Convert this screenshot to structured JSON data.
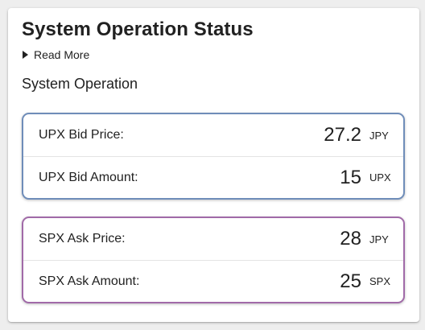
{
  "card": {
    "title": "System Operation Status",
    "read_more": "Read More",
    "subtitle": "System Operation"
  },
  "upx": {
    "bid_price_label": "UPX Bid Price:",
    "bid_price_value": "27.2",
    "bid_price_unit": "JPY",
    "bid_amount_label": "UPX Bid Amount:",
    "bid_amount_value": "15",
    "bid_amount_unit": "UPX",
    "border_color": "#6f8db9"
  },
  "spx": {
    "ask_price_label": "SPX Ask Price:",
    "ask_price_value": "28",
    "ask_price_unit": "JPY",
    "ask_amount_label": "SPX Ask Amount:",
    "ask_amount_value": "25",
    "ask_amount_unit": "SPX",
    "border_color": "#a16aa8"
  }
}
